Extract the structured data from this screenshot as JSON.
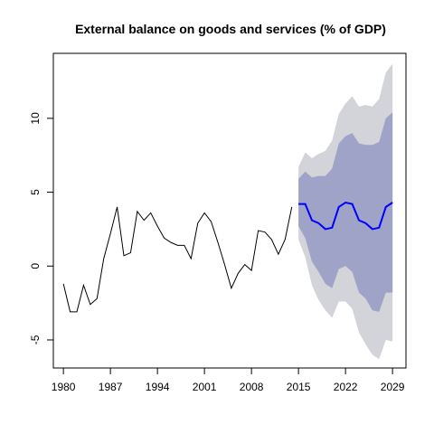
{
  "chart_data": {
    "type": "line",
    "title": "External balance on goods and services (% of GDP)",
    "xlabel": "",
    "ylabel": "",
    "xlim": [
      1978.5,
      2031
    ],
    "ylim": [
      -6.9,
      14.4
    ],
    "x_ticks": [
      1980,
      1987,
      1994,
      2001,
      2008,
      2015,
      2022,
      2029
    ],
    "y_ticks": [
      -5,
      0,
      5,
      10
    ],
    "grid": false,
    "colors": {
      "history": "#000000",
      "forecast": "#0000ff",
      "band_outer": "#d3d3da",
      "band_inner": "#9fa3c8"
    },
    "history": {
      "x": [
        1980,
        1981,
        1982,
        1983,
        1984,
        1985,
        1986,
        1987,
        1988,
        1989,
        1990,
        1991,
        1992,
        1993,
        1994,
        1995,
        1996,
        1997,
        1998,
        1999,
        2000,
        2001,
        2002,
        2003,
        2004,
        2005,
        2006,
        2007,
        2008,
        2009,
        2010,
        2011,
        2012,
        2013,
        2014
      ],
      "y": [
        -1.2,
        -3.1,
        -3.1,
        -1.3,
        -2.6,
        -2.2,
        0.5,
        2.2,
        4.0,
        0.7,
        0.9,
        3.7,
        3.1,
        3.6,
        2.7,
        1.9,
        1.6,
        1.4,
        1.4,
        0.5,
        2.9,
        3.6,
        3.0,
        1.6,
        0.1,
        -1.5,
        -0.5,
        0.1,
        -0.3,
        2.4,
        2.3,
        1.8,
        0.8,
        1.8,
        4.0
      ]
    },
    "forecast": {
      "x": [
        2015,
        2016,
        2017,
        2018,
        2019,
        2020,
        2021,
        2022,
        2023,
        2024,
        2025,
        2026,
        2027,
        2028,
        2029
      ],
      "mean": [
        4.2,
        4.2,
        3.1,
        2.9,
        2.5,
        2.6,
        4.0,
        4.3,
        4.2,
        3.1,
        2.9,
        2.5,
        2.6,
        4.0,
        4.3
      ],
      "lo80": [
        2.7,
        1.9,
        0.3,
        -0.4,
        -1.2,
        -1.5,
        -0.2,
        0.0,
        -0.4,
        -1.8,
        -2.2,
        -3.0,
        -3.1,
        -1.8,
        -1.8
      ],
      "hi80": [
        5.9,
        6.4,
        6.0,
        6.1,
        6.1,
        6.6,
        8.3,
        8.8,
        9.0,
        8.3,
        8.2,
        8.2,
        8.4,
        10.0,
        10.4
      ],
      "lo95": [
        1.8,
        0.6,
        -1.3,
        -2.3,
        -3.0,
        -3.5,
        -2.4,
        -2.4,
        -2.9,
        -4.5,
        -5.3,
        -6.0,
        -6.3,
        -5.0,
        -5.1
      ],
      "hi95": [
        6.7,
        7.7,
        7.3,
        7.6,
        7.8,
        8.5,
        10.3,
        11.0,
        11.5,
        10.8,
        10.9,
        10.8,
        11.3,
        13.1,
        13.7
      ]
    }
  }
}
